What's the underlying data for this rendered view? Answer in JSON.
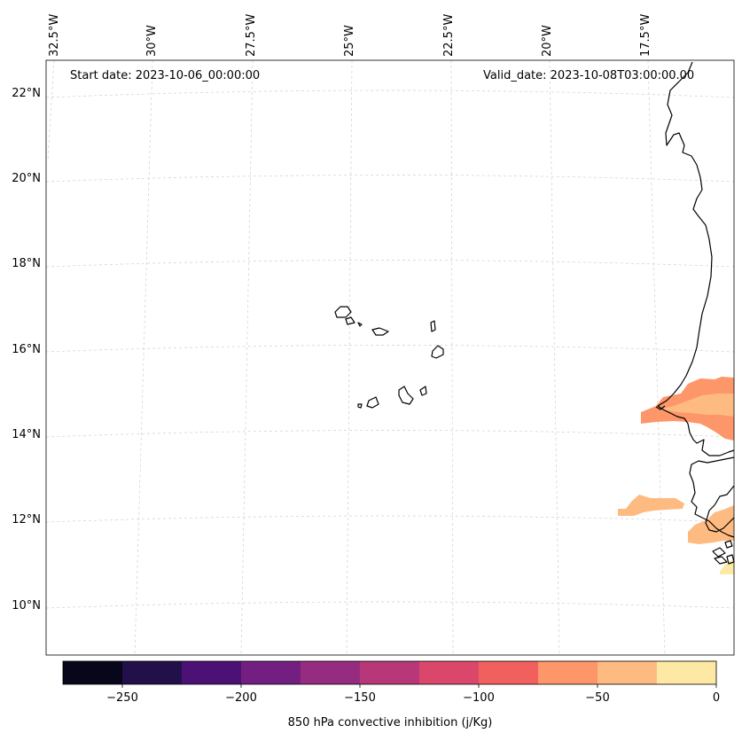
{
  "header": {
    "start_date": "Start date: 2023-10-06_00:00:00",
    "valid_date": "Valid_date: 2023-10-08T03:00:00.00"
  },
  "longitude_labels": [
    "32.5°W",
    "30°W",
    "27.5°W",
    "25°W",
    "22.5°W",
    "20°W",
    "17.5°W"
  ],
  "latitude_labels": [
    "22°N",
    "20°N",
    "18°N",
    "16°N",
    "14°N",
    "12°N",
    "10°N"
  ],
  "colorbar": {
    "label": "850 hPa convective inhibition (j/Kg)",
    "ticks": [
      "−250",
      "−200",
      "−150",
      "−100",
      "−50",
      "0"
    ],
    "colors": [
      "#07061a",
      "#21104a",
      "#4c1174",
      "#721f81",
      "#952c80",
      "#b73779",
      "#db476a",
      "#f1605d",
      "#fd9668",
      "#febb81",
      "#fde8a4"
    ]
  },
  "chart_data": {
    "type": "heatmap",
    "variable": "850 hPa convective inhibition",
    "units": "j/Kg",
    "color_range": [
      -275,
      0
    ],
    "color_levels": [
      -275,
      -250,
      -225,
      -200,
      -175,
      -150,
      -125,
      -100,
      -75,
      -50,
      -25,
      0
    ],
    "lon_range": [
      -33,
      -15.5
    ],
    "lat_range": [
      9,
      22.5
    ],
    "regions": [
      {
        "name": "north-senegal-band",
        "value_range": [
          -75,
          -50
        ]
      },
      {
        "name": "north-senegal-core",
        "value_range": [
          -50,
          -25
        ]
      },
      {
        "name": "offshore-12N-band",
        "value_range": [
          -50,
          -25
        ]
      },
      {
        "name": "guinea-bissau-patch",
        "value_range": [
          -50,
          -25
        ]
      },
      {
        "name": "southeast-corner",
        "value_range": [
          -25,
          0
        ]
      }
    ]
  }
}
